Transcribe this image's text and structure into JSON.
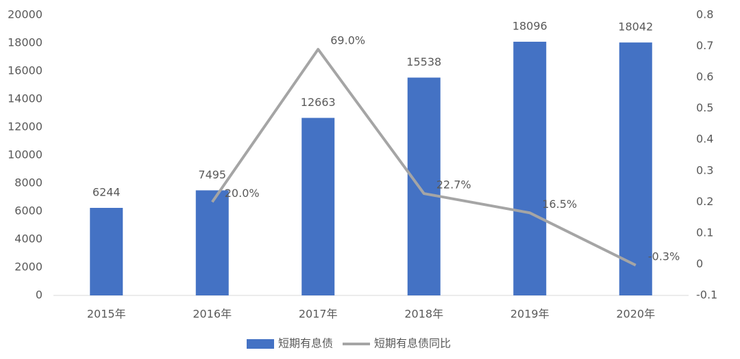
{
  "chart_data": {
    "type": "bar",
    "categories": [
      "2015年",
      "2016年",
      "2017年",
      "2018年",
      "2019年",
      "2020年"
    ],
    "series": [
      {
        "name": "短期有息债",
        "type": "bar",
        "color": "#4472c4",
        "values": [
          6244,
          7495,
          12663,
          15538,
          18096,
          18042
        ]
      },
      {
        "name": "短期有息债同比",
        "type": "line",
        "axis": "y2",
        "color": "#a5a5a5",
        "values": [
          null,
          0.2,
          0.69,
          0.227,
          0.165,
          -0.003
        ],
        "value_labels": [
          null,
          "20.0%",
          "69.0%",
          "22.7%",
          "16.5%",
          "-0.3%"
        ]
      }
    ],
    "ylim": [
      0,
      20000
    ],
    "yticks": [
      0,
      2000,
      4000,
      6000,
      8000,
      10000,
      12000,
      14000,
      16000,
      18000,
      20000
    ],
    "y2lim": [
      -0.1,
      0.8
    ],
    "y2ticks": [
      -0.1,
      0,
      0.1,
      0.2,
      0.3,
      0.4,
      0.5,
      0.6,
      0.7,
      0.8
    ],
    "legend": "bottom"
  }
}
